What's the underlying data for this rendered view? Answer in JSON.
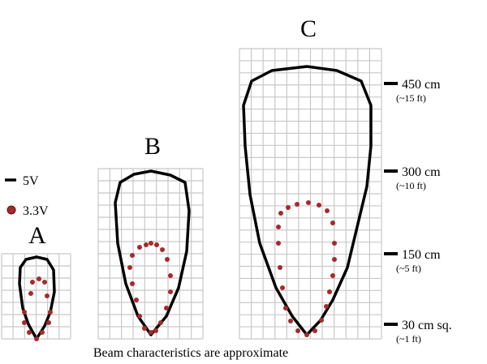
{
  "labels": {
    "a": "A",
    "b": "B",
    "c": "C"
  },
  "legend": [
    {
      "label": "5V"
    },
    {
      "label": "3.3V"
    }
  ],
  "scale": [
    {
      "distance": "450 cm",
      "feet": "(~15 ft)"
    },
    {
      "distance": "300 cm",
      "feet": "(~10 ft)"
    },
    {
      "distance": "150 cm",
      "feet": "(~5 ft)"
    },
    {
      "distance": "30 cm sq.",
      "feet": "(~1 ft)"
    }
  ],
  "caption": "Beam characteristics are approximate"
}
